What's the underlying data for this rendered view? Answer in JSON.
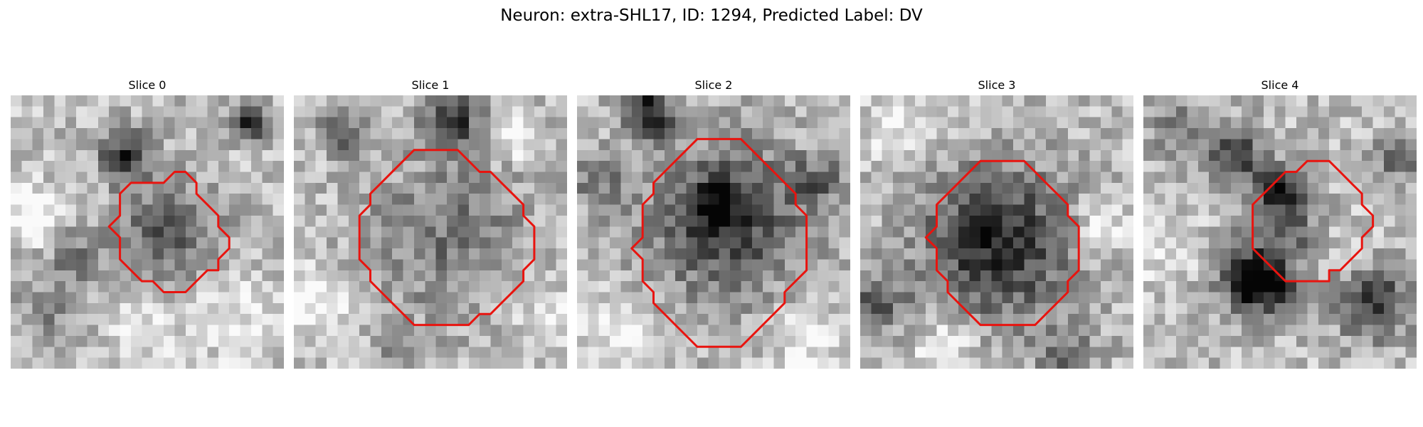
{
  "figure": {
    "title": "Neuron: extra-SHL17, ID: 1294, Predicted Label: DV",
    "outline_color": "#e8140f"
  },
  "slices": [
    {
      "title": "Slice 0",
      "outline": [
        [
          16,
          7
        ],
        [
          15,
          7
        ],
        [
          14,
          8
        ],
        [
          13,
          8
        ],
        [
          12,
          8
        ],
        [
          11,
          8
        ],
        [
          10,
          9
        ],
        [
          10,
          10
        ],
        [
          10,
          11
        ],
        [
          9,
          12
        ],
        [
          10,
          13
        ],
        [
          10,
          14
        ],
        [
          10,
          15
        ],
        [
          11,
          16
        ],
        [
          12,
          17
        ],
        [
          13,
          17
        ],
        [
          14,
          18
        ],
        [
          15,
          18
        ],
        [
          16,
          18
        ],
        [
          17,
          17
        ],
        [
          18,
          16
        ],
        [
          19,
          16
        ],
        [
          19,
          15
        ],
        [
          20,
          14
        ],
        [
          20,
          13
        ],
        [
          19,
          12
        ],
        [
          19,
          11
        ],
        [
          18,
          10
        ],
        [
          17,
          9
        ],
        [
          17,
          8
        ]
      ]
    },
    {
      "title": "Slice 1",
      "outline": [
        [
          12,
          5
        ],
        [
          11,
          5
        ],
        [
          10,
          6
        ],
        [
          9,
          7
        ],
        [
          8,
          8
        ],
        [
          7,
          9
        ],
        [
          7,
          10
        ],
        [
          6,
          11
        ],
        [
          6,
          12
        ],
        [
          6,
          13
        ],
        [
          6,
          14
        ],
        [
          6,
          15
        ],
        [
          7,
          16
        ],
        [
          7,
          17
        ],
        [
          8,
          18
        ],
        [
          9,
          19
        ],
        [
          10,
          20
        ],
        [
          11,
          21
        ],
        [
          12,
          21
        ],
        [
          13,
          21
        ],
        [
          14,
          21
        ],
        [
          15,
          21
        ],
        [
          16,
          21
        ],
        [
          17,
          20
        ],
        [
          18,
          20
        ],
        [
          19,
          19
        ],
        [
          20,
          18
        ],
        [
          21,
          17
        ],
        [
          21,
          16
        ],
        [
          22,
          15
        ],
        [
          22,
          14
        ],
        [
          22,
          13
        ],
        [
          22,
          12
        ],
        [
          21,
          11
        ],
        [
          21,
          10
        ],
        [
          20,
          9
        ],
        [
          19,
          8
        ],
        [
          18,
          7
        ],
        [
          17,
          7
        ],
        [
          16,
          6
        ],
        [
          15,
          5
        ],
        [
          14,
          5
        ],
        [
          13,
          5
        ]
      ]
    },
    {
      "title": "Slice 2",
      "outline": [
        [
          13,
          4
        ],
        [
          12,
          4
        ],
        [
          11,
          4
        ],
        [
          10,
          5
        ],
        [
          9,
          6
        ],
        [
          8,
          7
        ],
        [
          7,
          8
        ],
        [
          7,
          9
        ],
        [
          6,
          10
        ],
        [
          6,
          11
        ],
        [
          6,
          12
        ],
        [
          6,
          13
        ],
        [
          5,
          14
        ],
        [
          6,
          15
        ],
        [
          6,
          16
        ],
        [
          6,
          17
        ],
        [
          7,
          18
        ],
        [
          7,
          19
        ],
        [
          8,
          20
        ],
        [
          9,
          21
        ],
        [
          10,
          22
        ],
        [
          11,
          23
        ],
        [
          12,
          23
        ],
        [
          13,
          23
        ],
        [
          14,
          23
        ],
        [
          15,
          23
        ],
        [
          16,
          22
        ],
        [
          17,
          21
        ],
        [
          18,
          20
        ],
        [
          19,
          19
        ],
        [
          19,
          18
        ],
        [
          20,
          17
        ],
        [
          21,
          16
        ],
        [
          21,
          15
        ],
        [
          21,
          14
        ],
        [
          21,
          13
        ],
        [
          21,
          12
        ],
        [
          21,
          11
        ],
        [
          20,
          10
        ],
        [
          20,
          9
        ],
        [
          19,
          8
        ],
        [
          18,
          7
        ],
        [
          17,
          6
        ],
        [
          16,
          5
        ],
        [
          15,
          4
        ],
        [
          14,
          4
        ]
      ]
    },
    {
      "title": "Slice 3",
      "outline": [
        [
          13,
          6
        ],
        [
          12,
          6
        ],
        [
          11,
          6
        ],
        [
          10,
          7
        ],
        [
          9,
          8
        ],
        [
          8,
          9
        ],
        [
          7,
          10
        ],
        [
          7,
          11
        ],
        [
          7,
          12
        ],
        [
          6,
          13
        ],
        [
          7,
          14
        ],
        [
          7,
          15
        ],
        [
          7,
          16
        ],
        [
          8,
          17
        ],
        [
          8,
          18
        ],
        [
          9,
          19
        ],
        [
          10,
          20
        ],
        [
          11,
          21
        ],
        [
          12,
          21
        ],
        [
          13,
          21
        ],
        [
          14,
          21
        ],
        [
          15,
          21
        ],
        [
          16,
          21
        ],
        [
          17,
          20
        ],
        [
          18,
          19
        ],
        [
          19,
          18
        ],
        [
          19,
          17
        ],
        [
          20,
          16
        ],
        [
          20,
          15
        ],
        [
          20,
          14
        ],
        [
          20,
          13
        ],
        [
          20,
          12
        ],
        [
          19,
          11
        ],
        [
          19,
          10
        ],
        [
          18,
          9
        ],
        [
          17,
          8
        ],
        [
          16,
          7
        ],
        [
          15,
          6
        ],
        [
          14,
          6
        ]
      ]
    },
    {
      "title": "Slice 4",
      "outline": [
        [
          16,
          6
        ],
        [
          15,
          6
        ],
        [
          14,
          7
        ],
        [
          13,
          7
        ],
        [
          12,
          8
        ],
        [
          11,
          9
        ],
        [
          10,
          10
        ],
        [
          10,
          11
        ],
        [
          10,
          12
        ],
        [
          10,
          13
        ],
        [
          10,
          14
        ],
        [
          11,
          15
        ],
        [
          12,
          16
        ],
        [
          13,
          17
        ],
        [
          14,
          17
        ],
        [
          15,
          17
        ],
        [
          16,
          17
        ],
        [
          17,
          17
        ],
        [
          17,
          16
        ],
        [
          18,
          16
        ],
        [
          19,
          15
        ],
        [
          20,
          14
        ],
        [
          20,
          13
        ],
        [
          21,
          12
        ],
        [
          21,
          11
        ],
        [
          20,
          10
        ],
        [
          20,
          9
        ],
        [
          19,
          8
        ],
        [
          18,
          7
        ],
        [
          17,
          6
        ]
      ]
    }
  ]
}
